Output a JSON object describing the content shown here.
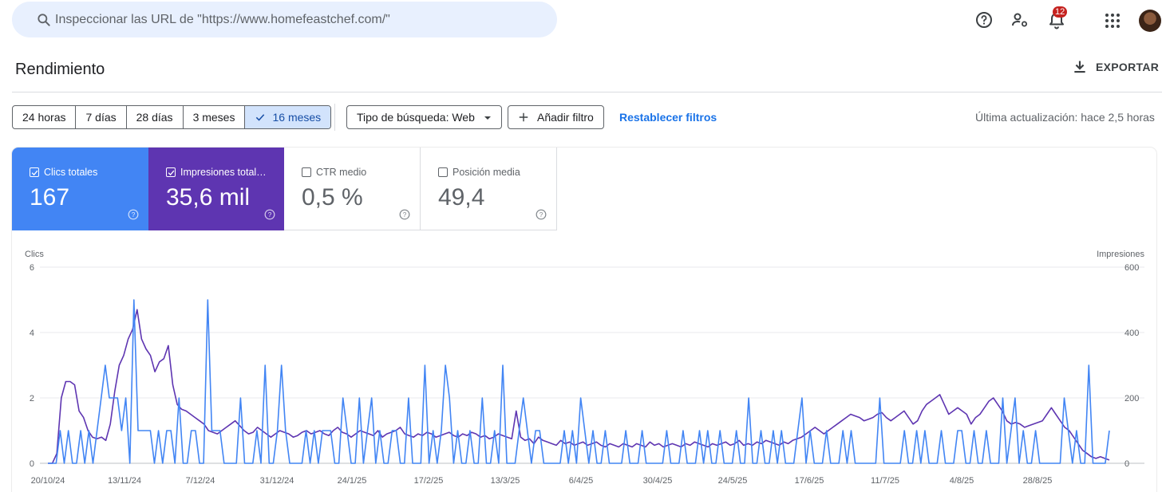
{
  "search": {
    "placeholder": "Inspeccionar las URL de \"https://www.homefeastchef.com/\""
  },
  "topbar": {
    "notifications_count": "12"
  },
  "header": {
    "title": "Rendimiento",
    "export_label": "EXPORTAR"
  },
  "filters": {
    "date_ranges": [
      {
        "label": "24 horas",
        "selected": false
      },
      {
        "label": "7 días",
        "selected": false
      },
      {
        "label": "28 días",
        "selected": false
      },
      {
        "label": "3 meses",
        "selected": false
      },
      {
        "label": "16 meses",
        "selected": true
      }
    ],
    "search_type": "Tipo de búsqueda: Web",
    "add_filter": "Añadir filtro",
    "reset": "Restablecer filtros",
    "last_update": "Última actualización: hace 2,5 horas"
  },
  "metrics": [
    {
      "label": "Clics totales",
      "value": "167",
      "checked": true,
      "color": "#4285f4"
    },
    {
      "label": "Impresiones total…",
      "value": "35,6 mil",
      "checked": true,
      "color": "#5e35b1"
    },
    {
      "label": "CTR medio",
      "value": "0,5 %",
      "checked": false
    },
    {
      "label": "Posición media",
      "value": "49,4",
      "checked": false
    }
  ],
  "chart_data": {
    "type": "line",
    "left_axis": {
      "label": "Clics",
      "ticks": [
        "6",
        "4",
        "2",
        "0"
      ],
      "range": [
        0,
        6
      ]
    },
    "right_axis": {
      "label": "Impresiones",
      "ticks": [
        "600",
        "400",
        "200",
        "0"
      ],
      "range": [
        0,
        600
      ]
    },
    "x_ticks": [
      "20/10/24",
      "13/11/24",
      "7/12/24",
      "31/12/24",
      "24/1/25",
      "17/2/25",
      "13/3/25",
      "6/4/25",
      "30/4/25",
      "24/5/25",
      "17/6/25",
      "11/7/25",
      "4/8/25",
      "28/8/25"
    ],
    "series": [
      {
        "name": "Clics",
        "axis": "left",
        "color": "#4285f4",
        "values": [
          0,
          0,
          0,
          1,
          0,
          1,
          0,
          0,
          1,
          0,
          1,
          0,
          1,
          2,
          3,
          2,
          2,
          2,
          1,
          2,
          0,
          5,
          1,
          1,
          1,
          1,
          0,
          1,
          0,
          1,
          1,
          0,
          2,
          0,
          0,
          1,
          1,
          0,
          0,
          5,
          1,
          1,
          1,
          0,
          0,
          0,
          0,
          2,
          0,
          0,
          0,
          1,
          0,
          3,
          0,
          0,
          1,
          3,
          1,
          0,
          0,
          0,
          0,
          1,
          0,
          1,
          0,
          1,
          1,
          1,
          0,
          0,
          2,
          1,
          0,
          0,
          2,
          0,
          1,
          2,
          0,
          1,
          0,
          0,
          1,
          1,
          0,
          0,
          2,
          0,
          0,
          0,
          3,
          0,
          1,
          0,
          1,
          3,
          2,
          0,
          1,
          0,
          0,
          1,
          0,
          0,
          2,
          0,
          0,
          1,
          0,
          3,
          0,
          0,
          0,
          1,
          2,
          1,
          0,
          1,
          1,
          0,
          0,
          0,
          0,
          0,
          1,
          0,
          1,
          0,
          2,
          1,
          0,
          1,
          0,
          0,
          1,
          0,
          0,
          0,
          0,
          1,
          0,
          0,
          0,
          1,
          0,
          0,
          0,
          0,
          0,
          1,
          0,
          0,
          0,
          1,
          0,
          0,
          0,
          1,
          0,
          1,
          0,
          0,
          1,
          0,
          0,
          0,
          1,
          0,
          0,
          2,
          0,
          0,
          1,
          0,
          0,
          1,
          0,
          1,
          0,
          0,
          0,
          1,
          2,
          0,
          1,
          0,
          0,
          0,
          1,
          0,
          0,
          0,
          1,
          0,
          1,
          0,
          0,
          0,
          0,
          0,
          0,
          2,
          0,
          0,
          0,
          0,
          0,
          1,
          0,
          0,
          1,
          0,
          1,
          0,
          0,
          0,
          1,
          0,
          0,
          0,
          1,
          1,
          0,
          0,
          1,
          0,
          0,
          1,
          0,
          0,
          0,
          2,
          0,
          1,
          2,
          0,
          1,
          0,
          0,
          1,
          0,
          0,
          0,
          0,
          0,
          0,
          2,
          1,
          0,
          1,
          0,
          0,
          3,
          0,
          0,
          0,
          0,
          1
        ]
      },
      {
        "name": "Impresiones",
        "axis": "right",
        "color": "#5e35b1",
        "values": [
          0,
          0,
          30,
          200,
          250,
          250,
          240,
          160,
          140,
          100,
          80,
          75,
          80,
          70,
          120,
          220,
          300,
          330,
          380,
          410,
          470,
          380,
          350,
          330,
          280,
          310,
          320,
          360,
          240,
          180,
          165,
          160,
          150,
          140,
          130,
          120,
          100,
          95,
          90,
          100,
          110,
          120,
          130,
          115,
          100,
          90,
          95,
          110,
          100,
          90,
          80,
          90,
          100,
          95,
          90,
          80,
          85,
          95,
          100,
          90,
          95,
          100,
          90,
          85,
          100,
          110,
          95,
          90,
          80,
          90,
          100,
          95,
          90,
          85,
          100,
          80,
          90,
          95,
          100,
          110,
          90,
          85,
          80,
          90,
          85,
          95,
          90,
          80,
          85,
          90,
          95,
          85,
          80,
          90,
          85,
          95,
          90,
          80,
          85,
          75,
          80,
          90,
          85,
          80,
          75,
          160,
          80,
          70,
          75,
          60,
          80,
          70,
          65,
          60,
          55,
          70,
          60,
          65,
          55,
          60,
          65,
          55,
          60,
          65,
          55,
          50,
          60,
          55,
          50,
          60,
          55,
          50,
          60,
          55,
          50,
          65,
          55,
          60,
          50,
          55,
          60,
          55,
          50,
          60,
          55,
          65,
          60,
          55,
          50,
          60,
          55,
          60,
          65,
          55,
          60,
          70,
          55,
          60,
          55,
          65,
          60,
          70,
          65,
          60,
          55,
          65,
          60,
          70,
          75,
          80,
          90,
          100,
          110,
          100,
          90,
          100,
          110,
          120,
          130,
          140,
          150,
          145,
          140,
          130,
          135,
          140,
          150,
          155,
          140,
          130,
          140,
          150,
          160,
          140,
          120,
          130,
          160,
          180,
          190,
          200,
          210,
          180,
          150,
          160,
          170,
          160,
          150,
          120,
          140,
          150,
          170,
          190,
          200,
          180,
          160,
          130,
          120,
          125,
          120,
          110,
          115,
          120,
          125,
          130,
          150,
          170,
          150,
          130,
          110,
          100,
          80,
          60,
          40,
          30,
          20,
          15,
          20,
          15,
          10
        ]
      }
    ]
  }
}
